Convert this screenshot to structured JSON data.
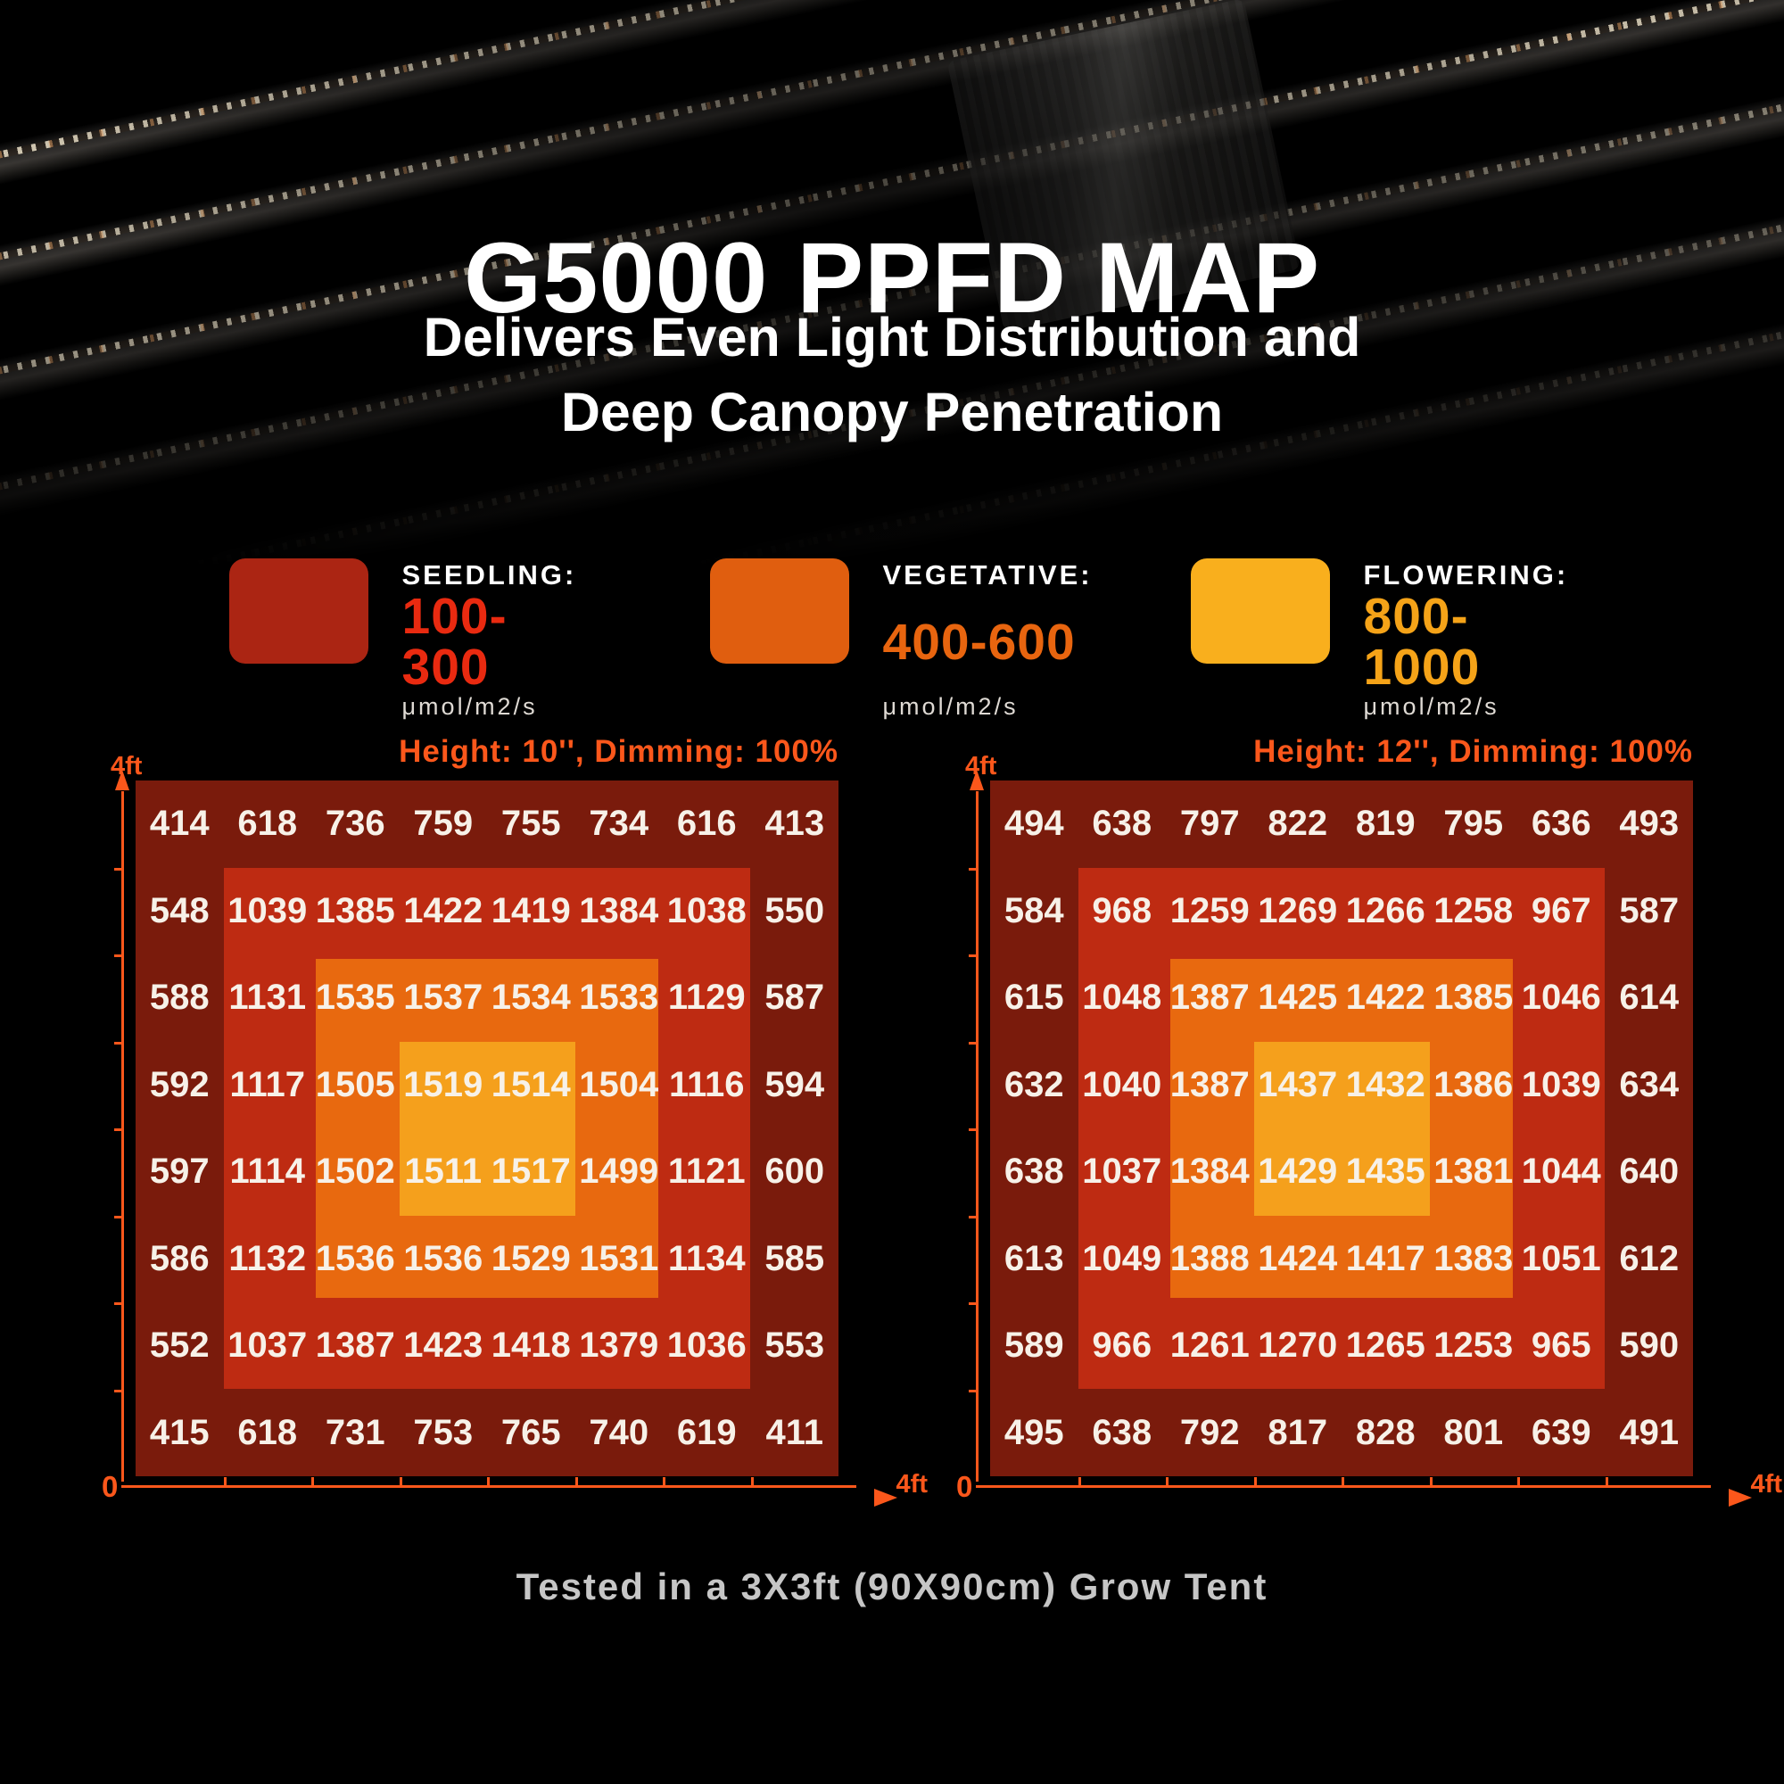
{
  "title": "G5000 PPFD MAP",
  "subtitle_line1": "Delivers Even Light Distribution and",
  "subtitle_line2": "Deep Canopy Penetration",
  "legend": {
    "items": [
      {
        "stage": "seedling",
        "label": "SEEDLING:",
        "range": "100-300",
        "unit": "μmol/m2/s",
        "swatch_color": "#AB2513",
        "range_color": "#E92A10"
      },
      {
        "stage": "vegetative",
        "label": "VEGETATIVE:",
        "range": "400-600",
        "unit": "μmol/m2/s",
        "swatch_color": "#E05E0F",
        "range_color": "#E8650F"
      },
      {
        "stage": "flowering",
        "label": "FLOWERING:",
        "range": "800-1000",
        "unit": "μmol/m2/s",
        "swatch_color": "#F9AF1D",
        "range_color": "#F5A318"
      }
    ]
  },
  "colors": {
    "axis": "#FB571B",
    "map_base": "#7A1B0C",
    "ring2": "#BE2B12",
    "ring3": "#E8690F",
    "ring4": "#F5A01C"
  },
  "caption": "Tested in a 3X3ft (90X90cm) Grow Tent",
  "chart_data": [
    {
      "type": "heatmap",
      "title": "Height: 10'', Dimming: 100%",
      "units": "μmol/m2/s",
      "rows": 8,
      "cols": 8,
      "x_axis": {
        "min_label": "0",
        "max_label": "4ft",
        "range_ft": [
          0,
          4
        ]
      },
      "y_axis": {
        "max_label": "4ft",
        "range_ft": [
          0,
          4
        ]
      },
      "values": [
        [
          414,
          618,
          736,
          759,
          755,
          734,
          616,
          413
        ],
        [
          548,
          1039,
          1385,
          1422,
          1419,
          1384,
          1038,
          550
        ],
        [
          588,
          1131,
          1535,
          1537,
          1534,
          1533,
          1129,
          587
        ],
        [
          592,
          1117,
          1505,
          1519,
          1514,
          1504,
          1116,
          594
        ],
        [
          597,
          1114,
          1502,
          1511,
          1517,
          1499,
          1121,
          600
        ],
        [
          586,
          1132,
          1536,
          1536,
          1529,
          1531,
          1134,
          585
        ],
        [
          552,
          1037,
          1387,
          1423,
          1418,
          1379,
          1036,
          553
        ],
        [
          415,
          618,
          731,
          753,
          765,
          740,
          619,
          411
        ]
      ]
    },
    {
      "type": "heatmap",
      "title": "Height: 12'', Dimming: 100%",
      "units": "μmol/m2/s",
      "rows": 8,
      "cols": 8,
      "x_axis": {
        "min_label": "0",
        "max_label": "4ft",
        "range_ft": [
          0,
          4
        ]
      },
      "y_axis": {
        "max_label": "4ft",
        "range_ft": [
          0,
          4
        ]
      },
      "values": [
        [
          494,
          638,
          797,
          822,
          819,
          795,
          636,
          493
        ],
        [
          584,
          968,
          1259,
          1269,
          1266,
          1258,
          967,
          587
        ],
        [
          615,
          1048,
          1387,
          1425,
          1422,
          1385,
          1046,
          614
        ],
        [
          632,
          1040,
          1387,
          1437,
          1432,
          1386,
          1039,
          634
        ],
        [
          638,
          1037,
          1384,
          1429,
          1435,
          1381,
          1044,
          640
        ],
        [
          613,
          1049,
          1388,
          1424,
          1417,
          1383,
          1051,
          612
        ],
        [
          589,
          966,
          1261,
          1270,
          1265,
          1253,
          965,
          590
        ],
        [
          495,
          638,
          792,
          817,
          828,
          801,
          639,
          491
        ]
      ]
    }
  ]
}
